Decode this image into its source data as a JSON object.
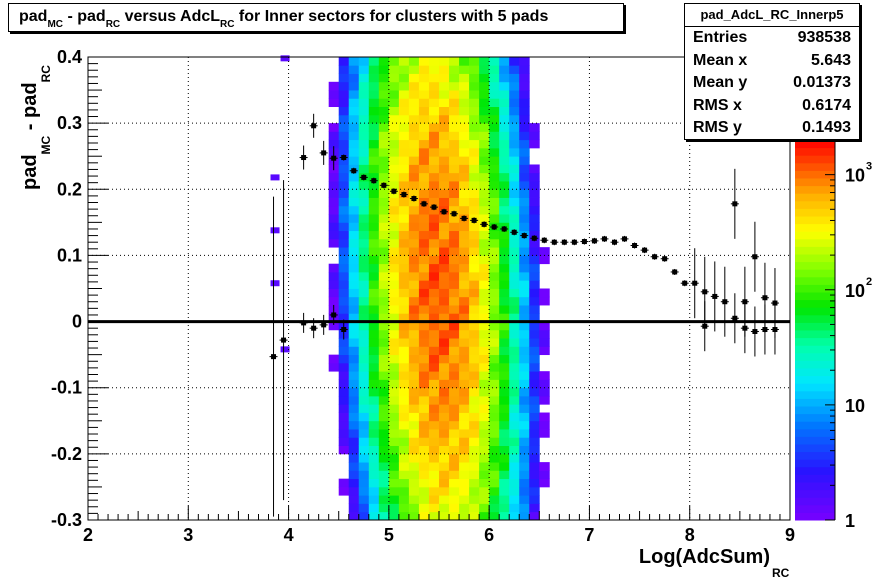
{
  "title": {
    "parts": [
      {
        "t": "pad",
        "s": "MC"
      },
      {
        "t": " - pad",
        "s": "RC"
      },
      {
        "t": " versus AdcL",
        "s": "RC"
      },
      {
        "t": " for Inner sectors for clusters with 5 pads",
        "s": ""
      }
    ]
  },
  "stats": {
    "name": "pad_AdcL_RC_Innerp5",
    "rows": [
      {
        "label": "Entries",
        "value": "938538"
      },
      {
        "label": "Mean x",
        "value": "5.643"
      },
      {
        "label": "Mean y",
        "value": "0.01373"
      },
      {
        "label": "RMS x",
        "value": "0.6174"
      },
      {
        "label": "RMS y",
        "value": "0.1493"
      }
    ]
  },
  "colorbar": {
    "labels": [
      {
        "text": "1",
        "exp": "",
        "value": 1
      },
      {
        "text": "10",
        "exp": "",
        "value": 10
      },
      {
        "text": "10",
        "exp": "2",
        "value": 100
      },
      {
        "text": "10",
        "exp": "3",
        "value": 1000
      }
    ],
    "max_value": 2000
  },
  "chart_data": {
    "type": "heatmap",
    "title": "pad_MC - pad_RC versus AdcL_RC for Inner sectors for clusters with 5 pads",
    "xlabel": "Log(AdcSum)",
    "xlabel_sub": "RC",
    "ylabel": "pad",
    "ylabel_parts": [
      {
        "t": "pad",
        "s": "MC"
      },
      {
        "t": " - pad",
        "s": "RC"
      }
    ],
    "xlim": [
      2,
      9
    ],
    "ylim": [
      -0.3,
      0.4
    ],
    "x_ticks": [
      2,
      3,
      4,
      5,
      6,
      7,
      8,
      9
    ],
    "y_ticks": [
      -0.3,
      -0.2,
      -0.1,
      0,
      0.1,
      0.2,
      0.3,
      0.4
    ],
    "y_tick_labels": [
      "-0.3",
      "-0.2",
      "-0.1",
      "0",
      "0.1",
      "0.2",
      "0.3",
      "0.4"
    ],
    "grid": true,
    "z_scale": "log",
    "z_range": [
      1,
      2000
    ],
    "profile_upper": {
      "x": [
        3.85,
        3.95,
        4.15,
        4.25,
        4.35,
        4.45,
        4.55,
        4.65,
        4.75,
        4.85,
        4.95,
        5.05,
        5.15,
        5.25,
        5.35,
        5.45,
        5.55,
        5.65,
        5.75,
        5.85,
        5.95,
        6.05,
        6.15,
        6.25,
        6.35,
        6.45,
        6.55,
        6.65,
        6.75,
        6.85,
        6.95,
        7.05,
        7.15,
        7.25,
        7.35,
        7.45,
        7.55,
        7.65,
        7.75,
        7.85,
        7.95,
        8.05,
        8.15,
        8.25,
        8.35,
        8.45,
        8.55,
        8.65,
        8.75,
        8.85
      ],
      "y": [
        -0.053,
        -0.028,
        0.248,
        0.296,
        0.255,
        0.247,
        0.248,
        0.228,
        0.218,
        0.213,
        0.206,
        0.197,
        0.192,
        0.186,
        0.178,
        0.173,
        0.166,
        0.163,
        0.156,
        0.153,
        0.147,
        0.143,
        0.14,
        0.135,
        0.13,
        0.126,
        0.123,
        0.12,
        0.12,
        0.12,
        0.121,
        0.122,
        0.125,
        0.12,
        0.125,
        0.115,
        0.108,
        0.098,
        0.095,
        0.075,
        0.058,
        0.058,
        0.045,
        0.038,
        0.03,
        0.178,
        0.03,
        0.098,
        0.036,
        0.028
      ]
    },
    "profile_lower": {
      "x": [
        4.15,
        4.25,
        4.35,
        4.45,
        4.55,
        8.15,
        8.45,
        8.55,
        8.65,
        8.75,
        8.85
      ],
      "y": [
        -0.002,
        -0.01,
        -0.005,
        0.01,
        -0.012,
        -0.007,
        0.005,
        -0.01,
        -0.015,
        -0.012,
        -0.012
      ]
    },
    "zero_line_y": 0
  }
}
